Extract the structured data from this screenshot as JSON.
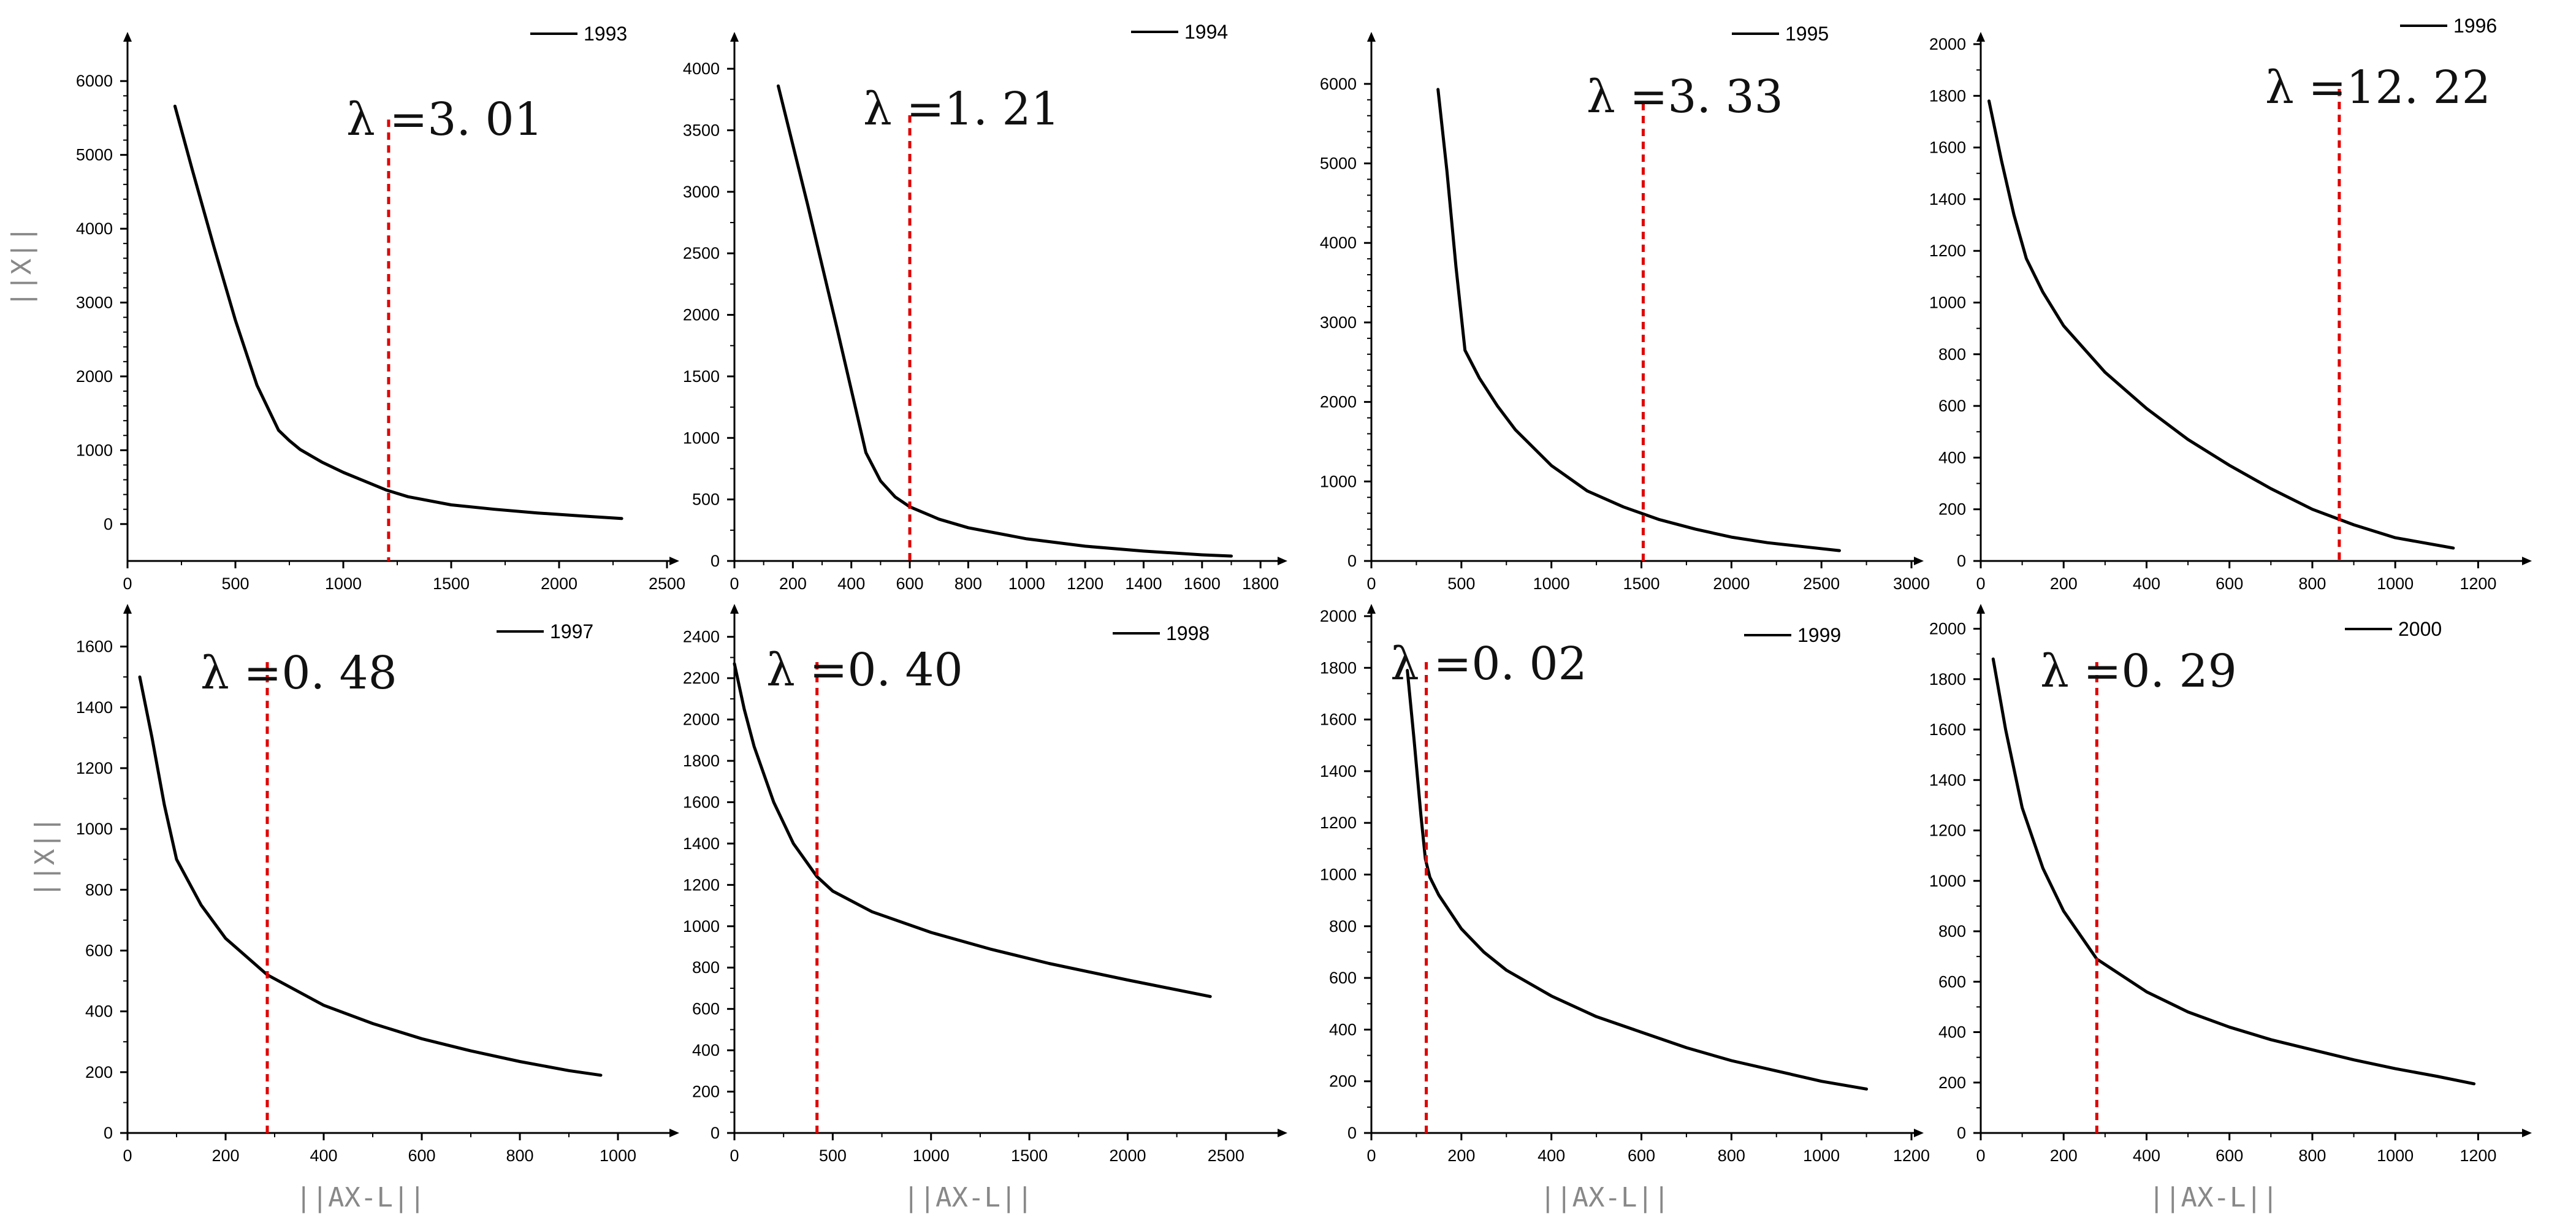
{
  "colors": {
    "curve": "#000000",
    "lambda": "#e00000",
    "axis_label": "#888888"
  },
  "chart_data": [
    {
      "type": "line",
      "series": [
        {
          "name": "1993",
          "x": [
            220,
            300,
            400,
            500,
            600,
            700,
            750,
            800,
            900,
            1000,
            1100,
            1200,
            1300,
            1500,
            1700,
            1900,
            2100,
            2290
          ],
          "y": [
            5660,
            4800,
            3760,
            2760,
            1880,
            1270,
            1130,
            1010,
            840,
            700,
            580,
            460,
            370,
            260,
            200,
            150,
            110,
            75
          ]
        }
      ],
      "lambda_label": "λ =3. 01",
      "lambda_x": 1210,
      "xlim": [
        0,
        2500
      ],
      "ylim": [
        -500,
        6500
      ],
      "xticks": [
        0,
        500,
        1000,
        1500,
        2000,
        2500
      ],
      "yticks": [
        0,
        1000,
        2000,
        3000,
        4000,
        5000,
        6000
      ],
      "ylabel": "||X||",
      "xlabel": ""
    },
    {
      "type": "line",
      "series": [
        {
          "name": "1994",
          "x": [
            150,
            250,
            350,
            450,
            500,
            550,
            600,
            700,
            800,
            1000,
            1200,
            1400,
            1600,
            1700
          ],
          "y": [
            3860,
            2900,
            1900,
            880,
            650,
            520,
            440,
            340,
            270,
            180,
            120,
            80,
            50,
            40
          ]
        }
      ],
      "lambda_label": "λ =1. 21",
      "lambda_x": 600,
      "xlim": [
        0,
        1850
      ],
      "ylim": [
        0,
        4200
      ],
      "xticks": [
        0,
        200,
        400,
        600,
        800,
        1000,
        1200,
        1400,
        1600,
        1800
      ],
      "yticks": [
        0,
        500,
        1000,
        1500,
        2000,
        2500,
        3000,
        3500,
        4000
      ],
      "ylabel": "",
      "xlabel": ""
    },
    {
      "type": "line",
      "series": [
        {
          "name": "1995",
          "x": [
            370,
            420,
            470,
            520,
            600,
            700,
            800,
            1000,
            1200,
            1400,
            1600,
            1800,
            2000,
            2200,
            2400,
            2600
          ],
          "y": [
            5930,
            4900,
            3700,
            2650,
            2300,
            1950,
            1650,
            1200,
            880,
            680,
            520,
            400,
            300,
            230,
            180,
            130
          ]
        }
      ],
      "lambda_label": "λ =3. 33",
      "lambda_x": 1510,
      "xlim": [
        0,
        3000
      ],
      "ylim": [
        0,
        6500
      ],
      "xticks": [
        0,
        500,
        1000,
        1500,
        2000,
        2500,
        3000
      ],
      "yticks": [
        0,
        1000,
        2000,
        3000,
        4000,
        5000,
        6000
      ],
      "ylabel": "",
      "xlabel": ""
    },
    {
      "type": "line",
      "series": [
        {
          "name": "1996",
          "x": [
            20,
            50,
            80,
            110,
            150,
            200,
            300,
            400,
            500,
            600,
            700,
            800,
            900,
            1000,
            1140
          ],
          "y": [
            1780,
            1550,
            1340,
            1170,
            1040,
            910,
            730,
            590,
            470,
            370,
            280,
            200,
            140,
            90,
            50
          ]
        }
      ],
      "lambda_label": "λ =12. 22",
      "lambda_x": 865,
      "xlim": [
        0,
        1300
      ],
      "ylim": [
        0,
        2000
      ],
      "xticks": [
        0,
        200,
        400,
        600,
        800,
        1000,
        1200
      ],
      "yticks": [
        0,
        200,
        400,
        600,
        800,
        1000,
        1200,
        1400,
        1600,
        1800,
        2000
      ],
      "ylabel": "",
      "xlabel": ""
    },
    {
      "type": "line",
      "series": [
        {
          "name": "1997",
          "x": [
            25,
            50,
            75,
            100,
            150,
            200,
            285,
            400,
            500,
            600,
            700,
            800,
            900,
            965
          ],
          "y": [
            1500,
            1300,
            1080,
            900,
            750,
            640,
            520,
            420,
            360,
            310,
            270,
            235,
            205,
            190
          ]
        }
      ],
      "lambda_label": "λ =0. 48",
      "lambda_x": 285,
      "xlim": [
        0,
        1100
      ],
      "ylim": [
        0,
        1700
      ],
      "xticks": [
        0,
        200,
        400,
        600,
        800,
        1000
      ],
      "yticks": [
        0,
        200,
        400,
        600,
        800,
        1000,
        1200,
        1400,
        1600
      ],
      "ylabel": "||X||",
      "xlabel": "||AX-L||"
    },
    {
      "type": "line",
      "series": [
        {
          "name": "1998",
          "x": [
            0,
            50,
            100,
            200,
            300,
            420,
            500,
            700,
            1000,
            1300,
            1600,
            2000,
            2420
          ],
          "y": [
            2270,
            2050,
            1870,
            1600,
            1400,
            1240,
            1170,
            1070,
            970,
            890,
            820,
            740,
            660
          ]
        }
      ],
      "lambda_label": "λ =0. 40",
      "lambda_x": 420,
      "xlim": [
        0,
        2750
      ],
      "ylim": [
        0,
        2500
      ],
      "xticks": [
        0,
        500,
        1000,
        1500,
        2000,
        2500
      ],
      "yticks": [
        0,
        200,
        400,
        600,
        800,
        1000,
        1200,
        1400,
        1600,
        1800,
        2000,
        2200,
        2400
      ],
      "ylabel": "",
      "xlabel": "||AX-L||"
    },
    {
      "type": "line",
      "series": [
        {
          "name": "1999",
          "x": [
            80,
            95,
            110,
            120,
            130,
            150,
            200,
            250,
            300,
            400,
            500,
            600,
            700,
            800,
            900,
            1000,
            1100
          ],
          "y": [
            1790,
            1520,
            1230,
            1060,
            990,
            920,
            790,
            700,
            630,
            530,
            450,
            390,
            330,
            280,
            240,
            200,
            170
          ]
        }
      ],
      "lambda_label": "λ =0. 02",
      "lambda_x": 122,
      "xlim": [
        0,
        1200
      ],
      "ylim": [
        0,
        2000
      ],
      "xticks": [
        0,
        200,
        400,
        600,
        800,
        1000,
        1200
      ],
      "yticks": [
        0,
        200,
        400,
        600,
        800,
        1000,
        1200,
        1400,
        1600,
        1800,
        2000
      ],
      "ylabel": "",
      "xlabel": "||AX-L||"
    },
    {
      "type": "line",
      "series": [
        {
          "name": "2000",
          "x": [
            30,
            60,
            100,
            150,
            200,
            280,
            400,
            500,
            600,
            700,
            800,
            900,
            1000,
            1100,
            1190
          ],
          "y": [
            1880,
            1600,
            1290,
            1050,
            880,
            690,
            560,
            480,
            420,
            370,
            330,
            290,
            255,
            225,
            195
          ]
        }
      ],
      "lambda_label": "λ =0. 29",
      "lambda_x": 280,
      "xlim": [
        0,
        1300
      ],
      "ylim": [
        0,
        2050
      ],
      "xticks": [
        0,
        200,
        400,
        600,
        800,
        1000,
        1200
      ],
      "yticks": [
        0,
        200,
        400,
        600,
        800,
        1000,
        1200,
        1400,
        1600,
        1800,
        2000
      ],
      "ylabel": "",
      "xlabel": "||AX-L||"
    }
  ]
}
